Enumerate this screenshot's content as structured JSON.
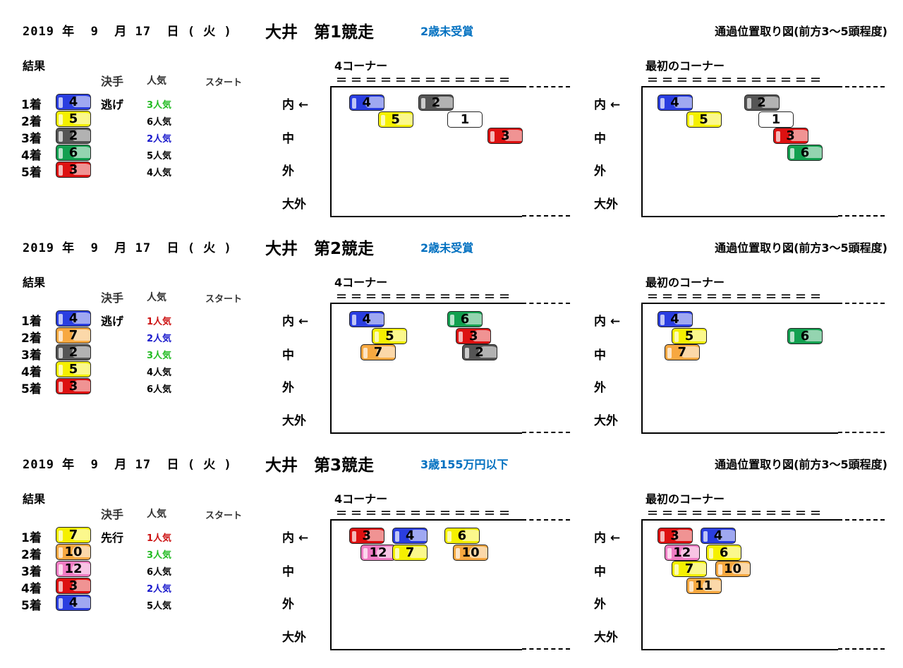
{
  "races": [
    {
      "date": "2019 年  9  月 17  日 ( 火 )",
      "title": "大井　第1競走",
      "class": "2歳未受賞",
      "figure_title": "通過位置取り図(前方3～5頭程度)",
      "results_label": "結果",
      "headers": {
        "kimete": "決手",
        "ninki": "人気",
        "start": "スタート"
      },
      "results": [
        {
          "place": "1着",
          "num": "4",
          "color": "#2a3ee0",
          "kimete": "逃げ",
          "pop": "3人気",
          "pop_color": "#22bb22"
        },
        {
          "place": "2着",
          "num": "5",
          "color": "#f5f000",
          "kimete": "",
          "pop": "6人気",
          "pop_color": "#000000"
        },
        {
          "place": "3着",
          "num": "2",
          "color": "#555555",
          "kimete": "",
          "pop": "2人気",
          "pop_color": "#1a1acc"
        },
        {
          "place": "4着",
          "num": "6",
          "color": "#13a050",
          "kimete": "",
          "pop": "5人気",
          "pop_color": "#000000"
        },
        {
          "place": "5着",
          "num": "3",
          "color": "#dd1111",
          "kimete": "",
          "pop": "4人気",
          "pop_color": "#000000"
        }
      ],
      "corner4": {
        "label": "4コーナー",
        "horses": [
          {
            "num": "4",
            "color": "#2a3ee0",
            "col": 0.6,
            "row": 0
          },
          {
            "num": "2",
            "color": "#555555",
            "col": 3.0,
            "row": 0
          },
          {
            "num": "5",
            "color": "#f5f000",
            "col": 1.6,
            "row": 1
          },
          {
            "num": "1",
            "color": "#ffffff",
            "col": 4.0,
            "row": 1
          },
          {
            "num": "3",
            "color": "#dd1111",
            "col": 5.4,
            "row": 2
          }
        ]
      },
      "corner1": {
        "label": "最初のコーナー",
        "horses": [
          {
            "num": "4",
            "color": "#2a3ee0",
            "col": 0.5,
            "row": 0
          },
          {
            "num": "2",
            "color": "#555555",
            "col": 3.5,
            "row": 0
          },
          {
            "num": "5",
            "color": "#f5f000",
            "col": 1.5,
            "row": 1
          },
          {
            "num": "1",
            "color": "#ffffff",
            "col": 4.0,
            "row": 1
          },
          {
            "num": "3",
            "color": "#dd1111",
            "col": 4.5,
            "row": 2
          },
          {
            "num": "6",
            "color": "#13a050",
            "col": 5.0,
            "row": 3
          }
        ]
      }
    },
    {
      "date": "2019 年  9  月 17  日 ( 火 )",
      "title": "大井　第2競走",
      "class": "2歳未受賞",
      "figure_title": "通過位置取り図(前方3～5頭程度)",
      "results_label": "結果",
      "headers": {
        "kimete": "決手",
        "ninki": "人気",
        "start": "スタート"
      },
      "results": [
        {
          "place": "1着",
          "num": "4",
          "color": "#2a3ee0",
          "kimete": "逃げ",
          "pop": "1人気",
          "pop_color": "#cc1111"
        },
        {
          "place": "2着",
          "num": "7",
          "color": "#f7a840",
          "kimete": "",
          "pop": "2人気",
          "pop_color": "#1a1acc"
        },
        {
          "place": "3着",
          "num": "2",
          "color": "#555555",
          "kimete": "",
          "pop": "3人気",
          "pop_color": "#22bb22"
        },
        {
          "place": "4着",
          "num": "5",
          "color": "#f5f000",
          "kimete": "",
          "pop": "4人気",
          "pop_color": "#000000"
        },
        {
          "place": "5着",
          "num": "3",
          "color": "#dd1111",
          "kimete": "",
          "pop": "6人気",
          "pop_color": "#000000"
        }
      ],
      "corner4": {
        "label": "4コーナー",
        "horses": [
          {
            "num": "4",
            "color": "#2a3ee0",
            "col": 0.6,
            "row": 0
          },
          {
            "num": "6",
            "color": "#13a050",
            "col": 4.0,
            "row": 0
          },
          {
            "num": "5",
            "color": "#f5f000",
            "col": 1.4,
            "row": 1
          },
          {
            "num": "3",
            "color": "#dd1111",
            "col": 4.3,
            "row": 1
          },
          {
            "num": "7",
            "color": "#f7a840",
            "col": 1.0,
            "row": 2
          },
          {
            "num": "2",
            "color": "#555555",
            "col": 4.5,
            "row": 2
          }
        ]
      },
      "corner1": {
        "label": "最初のコーナー",
        "horses": [
          {
            "num": "4",
            "color": "#2a3ee0",
            "col": 0.5,
            "row": 0
          },
          {
            "num": "5",
            "color": "#f5f000",
            "col": 1.0,
            "row": 1
          },
          {
            "num": "6",
            "color": "#13a050",
            "col": 5.0,
            "row": 1
          },
          {
            "num": "7",
            "color": "#f7a840",
            "col": 0.75,
            "row": 2
          }
        ]
      }
    },
    {
      "date": "2019 年  9  月 17  日 ( 火 )",
      "title": "大井　第3競走",
      "class": "3歳155万円以下",
      "figure_title": "通過位置取り図(前方3～5頭程度)",
      "results_label": "結果",
      "headers": {
        "kimete": "決手",
        "ninki": "人気",
        "start": "スタート"
      },
      "results": [
        {
          "place": "1着",
          "num": "7",
          "color": "#f5f000",
          "kimete": "先行",
          "pop": "1人気",
          "pop_color": "#cc1111"
        },
        {
          "place": "2着",
          "num": "10",
          "color": "#f7a840",
          "kimete": "",
          "pop": "3人気",
          "pop_color": "#22bb22"
        },
        {
          "place": "3着",
          "num": "12",
          "color": "#f07cc4",
          "kimete": "",
          "pop": "6人気",
          "pop_color": "#000000"
        },
        {
          "place": "4着",
          "num": "3",
          "color": "#dd1111",
          "kimete": "",
          "pop": "2人気",
          "pop_color": "#1a1acc"
        },
        {
          "place": "5着",
          "num": "4",
          "color": "#2a3ee0",
          "kimete": "",
          "pop": "5人気",
          "pop_color": "#000000"
        }
      ],
      "corner4": {
        "label": "4コーナー",
        "horses": [
          {
            "num": "3",
            "color": "#dd1111",
            "col": 0.6,
            "row": 0
          },
          {
            "num": "4",
            "color": "#2a3ee0",
            "col": 2.1,
            "row": 0
          },
          {
            "num": "6",
            "color": "#f5f000",
            "col": 3.9,
            "row": 0
          },
          {
            "num": "12",
            "color": "#f07cc4",
            "col": 1.0,
            "row": 1
          },
          {
            "num": "7",
            "color": "#f5f000",
            "col": 2.1,
            "row": 1
          },
          {
            "num": "10",
            "color": "#f7a840",
            "col": 4.2,
            "row": 1
          }
        ]
      },
      "corner1": {
        "label": "最初のコーナー",
        "horses": [
          {
            "num": "3",
            "color": "#dd1111",
            "col": 0.5,
            "row": 0
          },
          {
            "num": "4",
            "color": "#2a3ee0",
            "col": 2.0,
            "row": 0
          },
          {
            "num": "12",
            "color": "#f07cc4",
            "col": 0.75,
            "row": 1
          },
          {
            "num": "6",
            "color": "#f5f000",
            "col": 2.2,
            "row": 1
          },
          {
            "num": "7",
            "color": "#f5f000",
            "col": 1.0,
            "row": 2
          },
          {
            "num": "10",
            "color": "#f7a840",
            "col": 2.5,
            "row": 2
          },
          {
            "num": "11",
            "color": "#f7a840",
            "col": 1.5,
            "row": 3
          }
        ]
      }
    }
  ],
  "lanes": [
    "内 ←",
    "中",
    "外",
    "大外"
  ],
  "eq_marks": "＝＝＝＝＝＝＝＝＝＝＝＝"
}
